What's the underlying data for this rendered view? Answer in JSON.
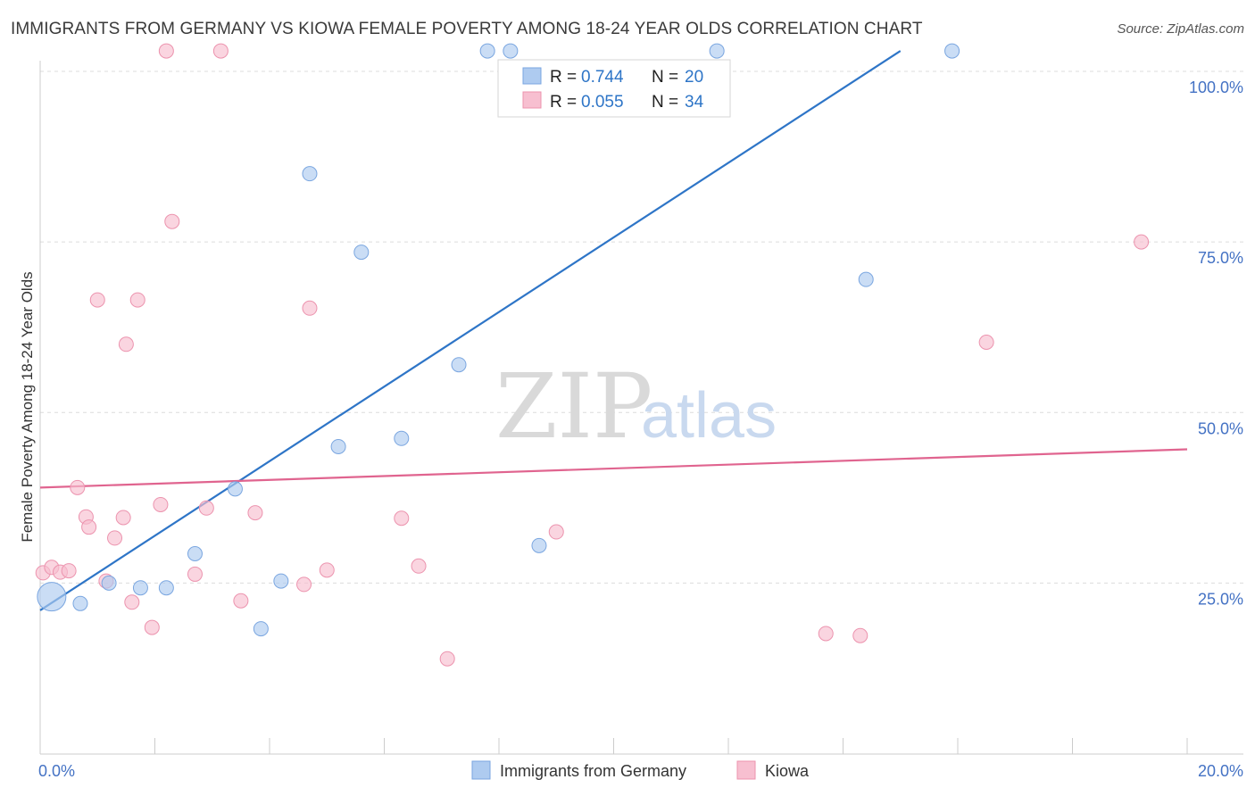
{
  "header": {
    "title": "IMMIGRANTS FROM GERMANY VS KIOWA FEMALE POVERTY AMONG 18-24 YEAR OLDS CORRELATION CHART",
    "source": "Source: ZipAtlas.com"
  },
  "watermark": {
    "zip": "ZIP",
    "atlas": "atlas"
  },
  "legend": {
    "rows": [
      {
        "r_label": "R =",
        "r_value": "0.744",
        "n_label": "N =",
        "n_value": "20",
        "color": "#aecbf0",
        "stroke": "#7aa6e0"
      },
      {
        "r_label": "R =",
        "r_value": "0.055",
        "n_label": "N =",
        "n_value": "34",
        "color": "#f7bfd0",
        "stroke": "#ec93ae"
      }
    ]
  },
  "bottom_legend": {
    "germany": "Immigrants from Germany",
    "kiowa": "Kiowa"
  },
  "chart_data": {
    "type": "scatter",
    "title": "IMMIGRANTS FROM GERMANY VS KIOWA FEMALE POVERTY AMONG 18-24 YEAR OLDS CORRELATION CHART",
    "xlabel": "",
    "ylabel": "Female Poverty Among 18-24 Year Olds",
    "xlim": [
      0,
      20
    ],
    "ylim": [
      0,
      105
    ],
    "x_tick_labels": [
      {
        "value": 0,
        "label": "0.0%"
      },
      {
        "value": 20,
        "label": "20.0%"
      }
    ],
    "y_tick_labels": [
      {
        "value": 25,
        "label": "25.0%"
      },
      {
        "value": 50,
        "label": "50.0%"
      },
      {
        "value": 75,
        "label": "75.0%"
      },
      {
        "value": 100,
        "label": "100.0%"
      }
    ],
    "series": [
      {
        "name": "Immigrants from Germany",
        "color": "#aecbf0",
        "stroke": "#7aa6e0",
        "line_color": "#2e75c7",
        "trend": {
          "x": [
            0,
            15.0
          ],
          "y": [
            21.0,
            103.0
          ]
        },
        "points": [
          {
            "x": 0.2,
            "y": 23.0,
            "big": true
          },
          {
            "x": 0.7,
            "y": 22.0
          },
          {
            "x": 1.2,
            "y": 25.0
          },
          {
            "x": 1.75,
            "y": 24.3
          },
          {
            "x": 2.2,
            "y": 24.3
          },
          {
            "x": 2.7,
            "y": 29.3
          },
          {
            "x": 3.4,
            "y": 38.8
          },
          {
            "x": 3.85,
            "y": 18.3
          },
          {
            "x": 4.2,
            "y": 25.3
          },
          {
            "x": 4.7,
            "y": 85.0
          },
          {
            "x": 5.2,
            "y": 45.0
          },
          {
            "x": 5.6,
            "y": 73.5
          },
          {
            "x": 6.3,
            "y": 46.2
          },
          {
            "x": 7.3,
            "y": 57.0
          },
          {
            "x": 7.8,
            "y": 103.0
          },
          {
            "x": 8.2,
            "y": 103.0
          },
          {
            "x": 8.7,
            "y": 30.5
          },
          {
            "x": 11.8,
            "y": 103.0
          },
          {
            "x": 14.4,
            "y": 69.5
          },
          {
            "x": 15.9,
            "y": 103.0
          }
        ]
      },
      {
        "name": "Kiowa",
        "color": "#f7bfd0",
        "stroke": "#ec93ae",
        "line_color": "#e0648f",
        "trend": {
          "x": [
            0,
            20
          ],
          "y": [
            39.0,
            44.6
          ]
        },
        "points": [
          {
            "x": 0.05,
            "y": 26.5
          },
          {
            "x": 0.2,
            "y": 27.3
          },
          {
            "x": 0.35,
            "y": 26.6
          },
          {
            "x": 0.5,
            "y": 26.8
          },
          {
            "x": 0.65,
            "y": 39.0
          },
          {
            "x": 0.8,
            "y": 34.7
          },
          {
            "x": 0.85,
            "y": 33.2
          },
          {
            "x": 1.0,
            "y": 66.5
          },
          {
            "x": 1.15,
            "y": 25.3
          },
          {
            "x": 1.3,
            "y": 31.6
          },
          {
            "x": 1.45,
            "y": 34.6
          },
          {
            "x": 1.5,
            "y": 60.0
          },
          {
            "x": 1.6,
            "y": 22.2
          },
          {
            "x": 1.7,
            "y": 66.5
          },
          {
            "x": 1.95,
            "y": 18.5
          },
          {
            "x": 2.1,
            "y": 36.5
          },
          {
            "x": 2.2,
            "y": 103.0
          },
          {
            "x": 2.3,
            "y": 78.0
          },
          {
            "x": 2.7,
            "y": 26.3
          },
          {
            "x": 2.9,
            "y": 36.0
          },
          {
            "x": 3.15,
            "y": 103.0
          },
          {
            "x": 3.5,
            "y": 22.4
          },
          {
            "x": 3.75,
            "y": 35.3
          },
          {
            "x": 4.6,
            "y": 24.8
          },
          {
            "x": 4.7,
            "y": 65.3
          },
          {
            "x": 5.0,
            "y": 26.9
          },
          {
            "x": 6.3,
            "y": 34.5
          },
          {
            "x": 6.6,
            "y": 27.5
          },
          {
            "x": 7.1,
            "y": 13.9
          },
          {
            "x": 9.0,
            "y": 32.5
          },
          {
            "x": 13.7,
            "y": 17.6
          },
          {
            "x": 14.3,
            "y": 17.3
          },
          {
            "x": 16.5,
            "y": 60.3
          },
          {
            "x": 19.2,
            "y": 75.0
          }
        ]
      }
    ]
  }
}
